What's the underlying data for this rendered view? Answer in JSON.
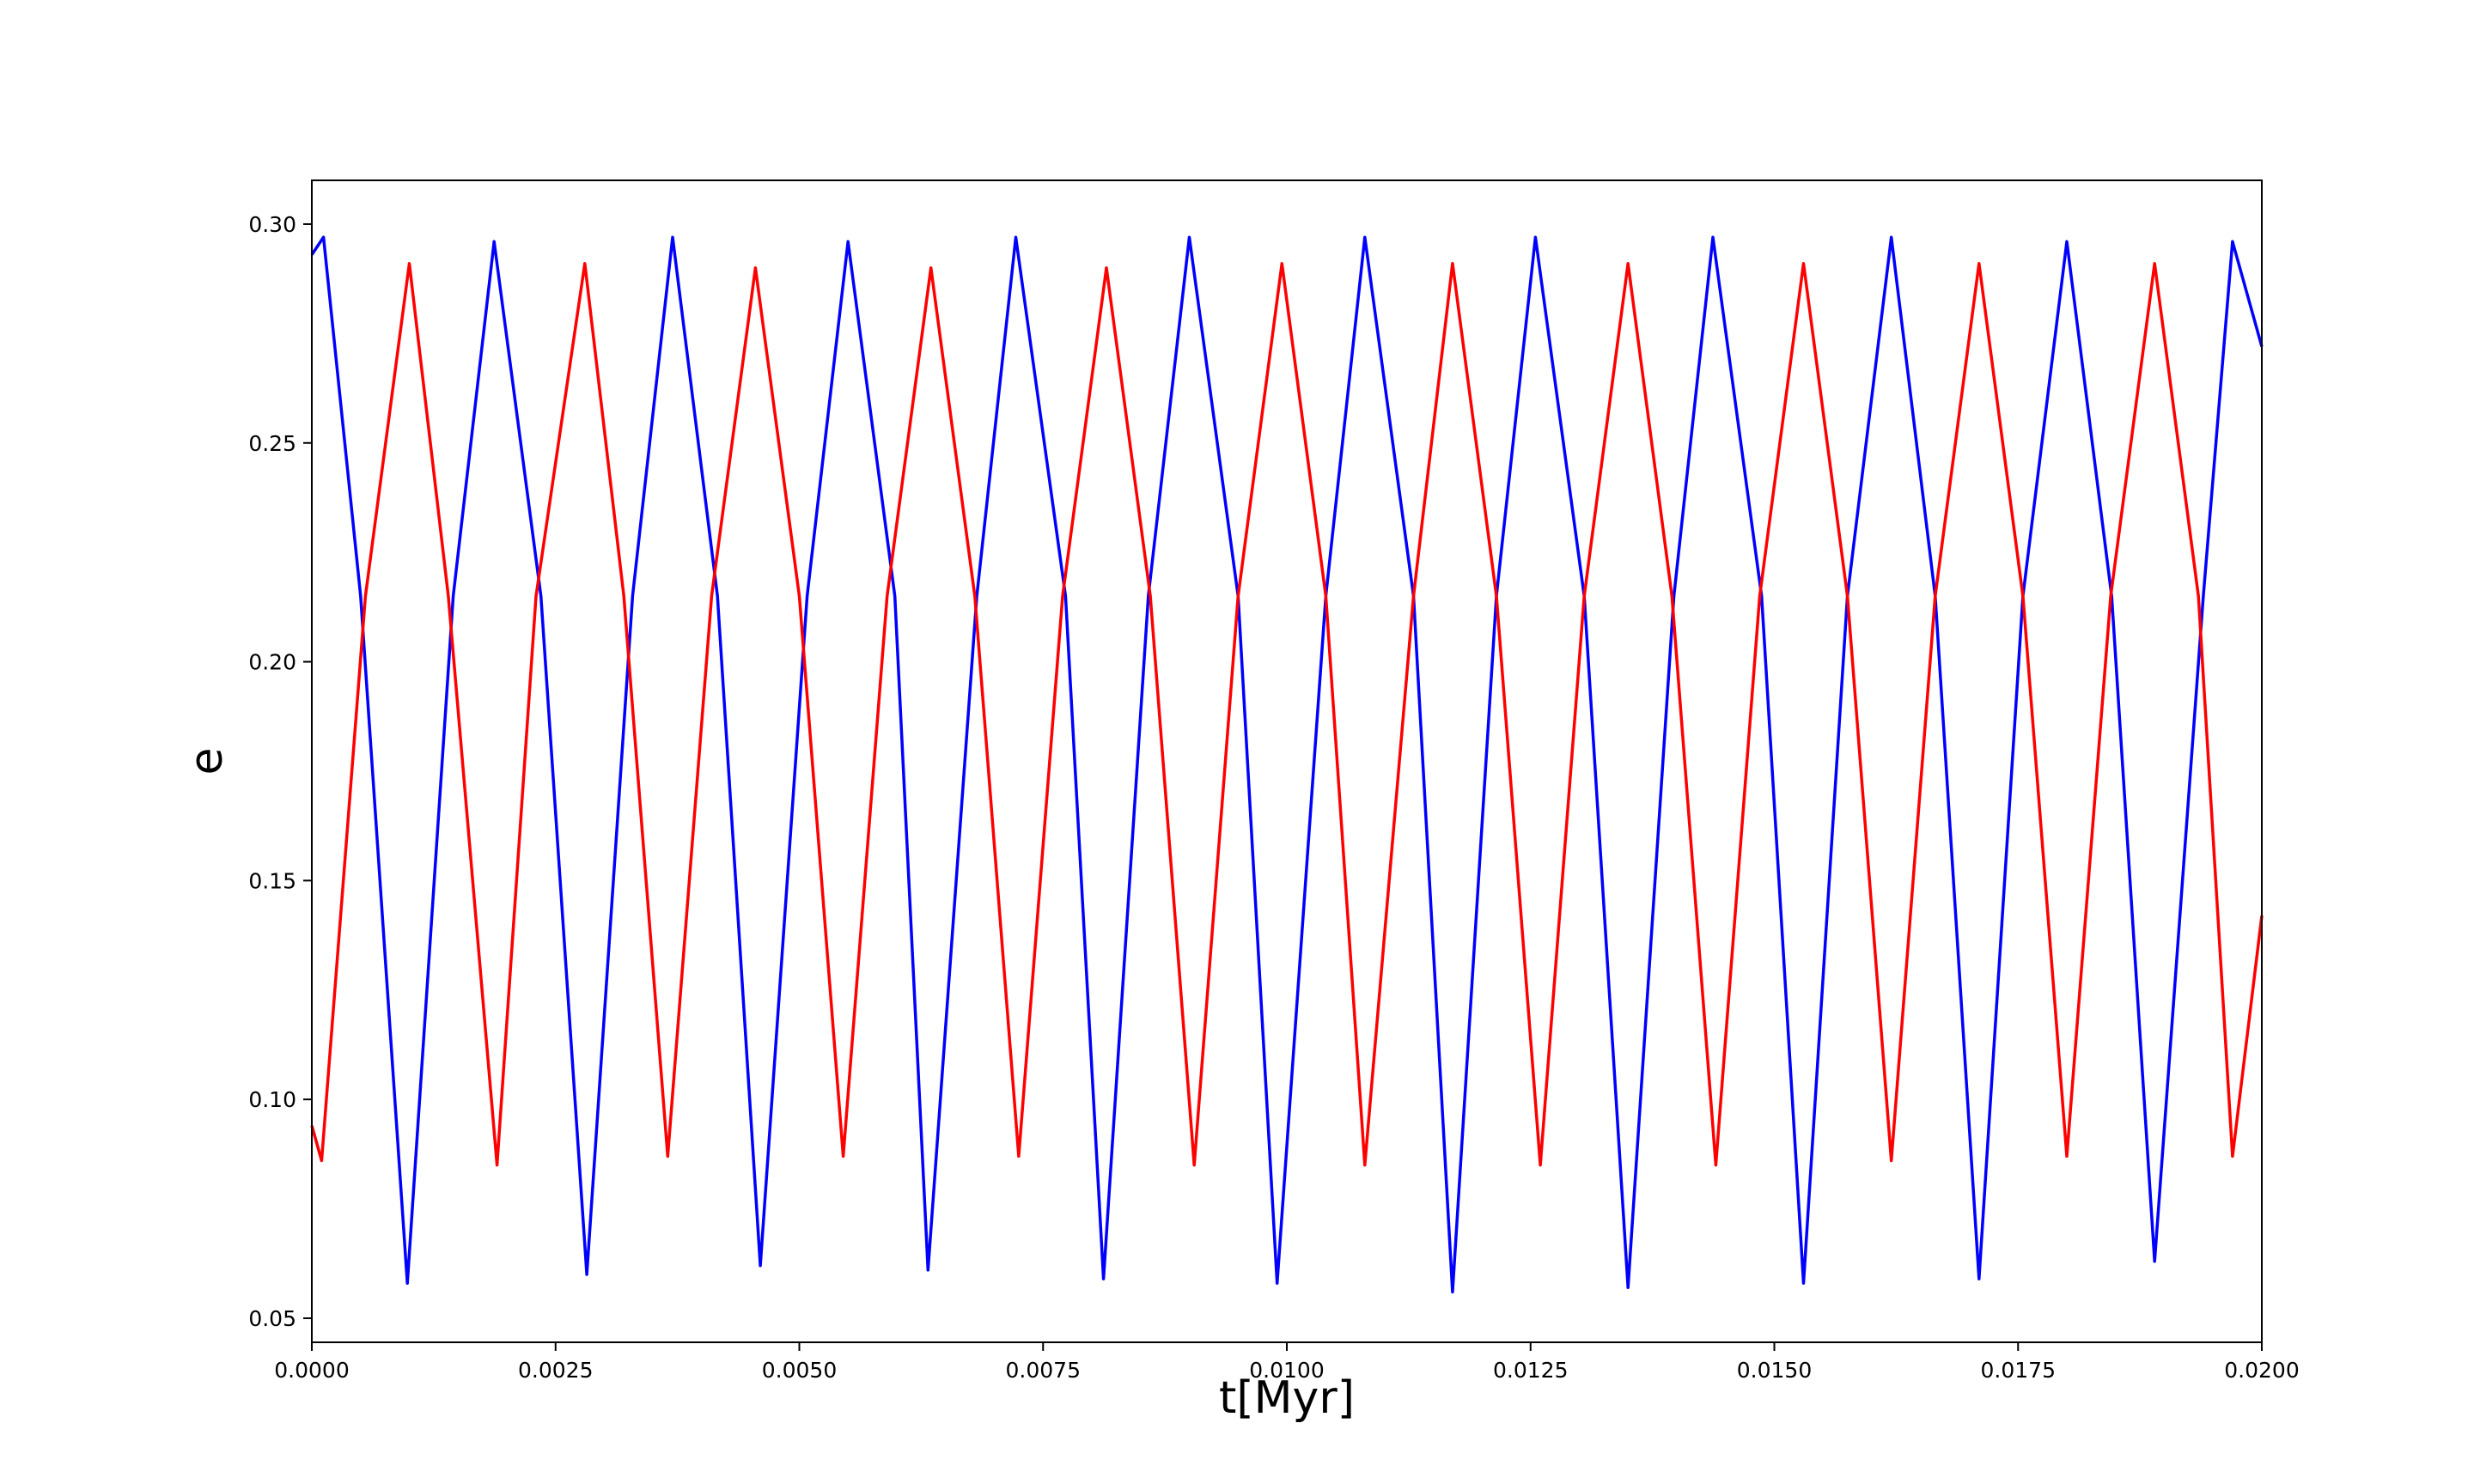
{
  "chart_data": {
    "type": "line",
    "xlabel": "t[Myr]",
    "ylabel": "e",
    "xlim": [
      0.0,
      0.02
    ],
    "ylim": [
      0.0445,
      0.31
    ],
    "xticks": [
      0.0,
      0.0025,
      0.005,
      0.0075,
      0.01,
      0.0125,
      0.015,
      0.0175,
      0.02
    ],
    "xtick_labels": [
      "0.0000",
      "0.0025",
      "0.0050",
      "0.0075",
      "0.0100",
      "0.0125",
      "0.0150",
      "0.0175",
      "0.0200"
    ],
    "yticks": [
      0.05,
      0.1,
      0.15,
      0.2,
      0.25,
      0.3
    ],
    "ytick_labels": [
      "0.05",
      "0.10",
      "0.15",
      "0.20",
      "0.25",
      "0.30"
    ],
    "grid": false,
    "legend": "none",
    "series": [
      {
        "color": "#0000ff",
        "x": [
          0.0,
          0.00012,
          0.0005,
          0.00098,
          0.00145,
          0.00187,
          0.00235,
          0.00282,
          0.00329,
          0.0037,
          0.00416,
          0.0046,
          0.00508,
          0.0055,
          0.00598,
          0.00632,
          0.00682,
          0.00722,
          0.00773,
          0.00812,
          0.00858,
          0.009,
          0.0095,
          0.0099,
          0.0104,
          0.0108,
          0.0113,
          0.0117,
          0.01215,
          0.01255,
          0.01305,
          0.0135,
          0.01397,
          0.01437,
          0.01487,
          0.0153,
          0.01575,
          0.0162,
          0.01665,
          0.0171,
          0.01755,
          0.018,
          0.01846,
          0.0189,
          0.0194,
          0.0197,
          0.02
        ],
        "y": [
          0.293,
          0.297,
          0.215,
          0.058,
          0.215,
          0.296,
          0.215,
          0.06,
          0.215,
          0.297,
          0.215,
          0.062,
          0.215,
          0.296,
          0.215,
          0.061,
          0.215,
          0.297,
          0.215,
          0.059,
          0.215,
          0.297,
          0.215,
          0.058,
          0.215,
          0.297,
          0.215,
          0.056,
          0.215,
          0.297,
          0.215,
          0.057,
          0.215,
          0.297,
          0.215,
          0.058,
          0.215,
          0.297,
          0.215,
          0.059,
          0.215,
          0.296,
          0.215,
          0.063,
          0.215,
          0.296,
          0.272
        ]
      },
      {
        "color": "#ff0000",
        "x": [
          0.0,
          0.0001,
          0.00055,
          0.001,
          0.0014,
          0.0019,
          0.0023,
          0.0028,
          0.0032,
          0.00365,
          0.0041,
          0.00455,
          0.005,
          0.00545,
          0.0059,
          0.00635,
          0.0068,
          0.00725,
          0.0077,
          0.00815,
          0.0086,
          0.00905,
          0.0095,
          0.00995,
          0.0104,
          0.0108,
          0.0113,
          0.0117,
          0.01215,
          0.0126,
          0.01305,
          0.0135,
          0.01395,
          0.0144,
          0.01485,
          0.0153,
          0.01575,
          0.0162,
          0.01665,
          0.0171,
          0.01755,
          0.018,
          0.01845,
          0.0189,
          0.01935,
          0.0197,
          0.02
        ],
        "y": [
          0.094,
          0.086,
          0.215,
          0.291,
          0.215,
          0.085,
          0.215,
          0.291,
          0.215,
          0.087,
          0.215,
          0.29,
          0.215,
          0.087,
          0.215,
          0.29,
          0.215,
          0.087,
          0.215,
          0.29,
          0.215,
          0.085,
          0.215,
          0.291,
          0.215,
          0.085,
          0.215,
          0.291,
          0.215,
          0.085,
          0.215,
          0.291,
          0.215,
          0.085,
          0.215,
          0.291,
          0.215,
          0.086,
          0.215,
          0.291,
          0.215,
          0.087,
          0.215,
          0.291,
          0.215,
          0.087,
          0.142
        ]
      }
    ]
  }
}
